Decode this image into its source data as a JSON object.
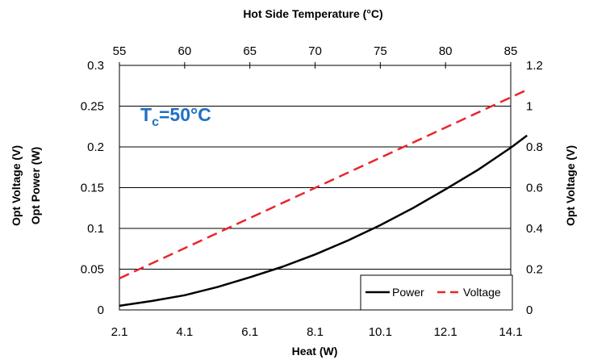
{
  "chart_data": {
    "type": "line",
    "title": "Hot Side Temperature (°C)",
    "xlabel": "Heat (W)",
    "ylabel_left": [
      "Opt Voltage (V)",
      "Opt Power (W)"
    ],
    "ylabel_right": "Opt Voltage (V)",
    "x_ticks": [
      "2.1",
      "4.1",
      "6.1",
      "8.1",
      "10.1",
      "12.1",
      "14.1"
    ],
    "x_top_ticks": [
      "55",
      "60",
      "65",
      "70",
      "75",
      "80",
      "85"
    ],
    "y_left_ticks": [
      "0",
      "0.05",
      "0.1",
      "0.15",
      "0.2",
      "0.25",
      "0.3"
    ],
    "y_right_ticks": [
      "0",
      "0.2",
      "0.4",
      "0.6",
      "0.8",
      "1",
      "1.2"
    ],
    "xlim": [
      2.1,
      14.1
    ],
    "x_top_lim": [
      55,
      85
    ],
    "ylim_left": [
      0,
      0.3
    ],
    "ylim_right": [
      0,
      1.2
    ],
    "grid": "horizontal",
    "legend_position": "bottom-right",
    "annotation": {
      "main": "T",
      "sub": "c",
      "rest": "=50°C"
    },
    "series": [
      {
        "name": "Power",
        "axis": "left",
        "color": "#000000",
        "style": "solid",
        "x": [
          2.1,
          3.1,
          4.1,
          5.1,
          6.1,
          7.1,
          8.1,
          9.1,
          10.1,
          11.1,
          12.1,
          13.1,
          14.1,
          14.6
        ],
        "y": [
          0.005,
          0.011,
          0.018,
          0.028,
          0.04,
          0.053,
          0.068,
          0.085,
          0.104,
          0.125,
          0.148,
          0.172,
          0.199,
          0.214
        ]
      },
      {
        "name": "Voltage",
        "axis": "right",
        "color": "#e8262d",
        "style": "dashed",
        "x": [
          2.1,
          14.6
        ],
        "y": [
          0.155,
          1.08
        ]
      }
    ]
  }
}
